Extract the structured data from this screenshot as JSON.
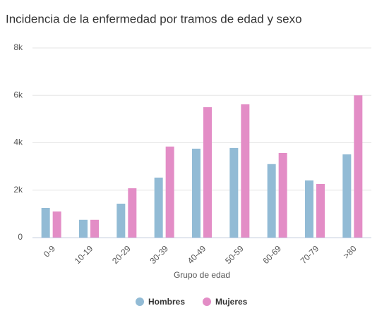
{
  "chart_data": {
    "type": "bar",
    "title": "Incidencia de la enfermedad por tramos de edad y sexo",
    "x_label": "Grupo de edad",
    "categories": [
      "0-9",
      "10-19",
      "20-29",
      "30-39",
      "40-49",
      "50-59",
      "60-69",
      "70-79",
      ">80"
    ],
    "series": [
      {
        "name": "Hombres",
        "color": "#92bbd5",
        "values": [
          1250,
          750,
          1430,
          2530,
          3750,
          3780,
          3100,
          2410,
          3510
        ]
      },
      {
        "name": "Mujeres",
        "color": "#e38dc6",
        "values": [
          1100,
          750,
          2080,
          3840,
          5500,
          5620,
          3570,
          2260,
          6000
        ]
      }
    ],
    "ylim": [
      0,
      8000
    ],
    "yticks": [
      0,
      {
        "value": 2000,
        "label": "2k"
      },
      {
        "value": 4000,
        "label": "4k"
      },
      {
        "value": 6000,
        "label": "6k"
      },
      {
        "value": 8000,
        "label": "8k"
      }
    ],
    "grid": true
  }
}
